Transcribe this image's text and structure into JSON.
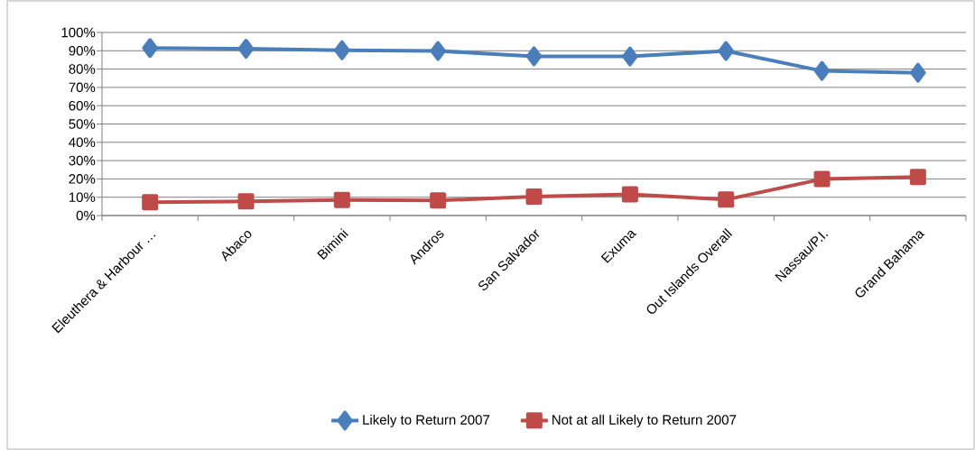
{
  "chart_data": {
    "type": "line",
    "categories": [
      "Eleuthera & Harbour …",
      "Abaco",
      "Bimini",
      "Andros",
      "San Salvador",
      "Exuma",
      "Out Islands Overall",
      "Nassau/P.I.",
      "Grand Bahama"
    ],
    "series": [
      {
        "name": "Likely to Return 2007",
        "color": "#4a7ebb",
        "marker": "diamond",
        "values": [
          91.5,
          91.1,
          90.3,
          89.9,
          87.0,
          86.9,
          89.9,
          79.0,
          78.0
        ]
      },
      {
        "name": "Not at all Likely to Return 2007",
        "color": "#be4b48",
        "marker": "square",
        "values": [
          7.3,
          7.7,
          8.5,
          8.2,
          10.4,
          11.6,
          8.7,
          19.9,
          21.0
        ]
      }
    ],
    "ylim": [
      0,
      100
    ],
    "yticks": [
      {
        "value": 0,
        "label": "0%"
      },
      {
        "value": 10,
        "label": "10%"
      },
      {
        "value": 20,
        "label": "20%"
      },
      {
        "value": 30,
        "label": "30%"
      },
      {
        "value": 40,
        "label": "40%"
      },
      {
        "value": 50,
        "label": "50%"
      },
      {
        "value": 60,
        "label": "60%"
      },
      {
        "value": 70,
        "label": "70%"
      },
      {
        "value": 80,
        "label": "80%"
      },
      {
        "value": 90,
        "label": "90%"
      },
      {
        "value": 100,
        "label": "100%"
      }
    ],
    "grid": "y",
    "legend": "bottom",
    "line_style": "solid"
  }
}
